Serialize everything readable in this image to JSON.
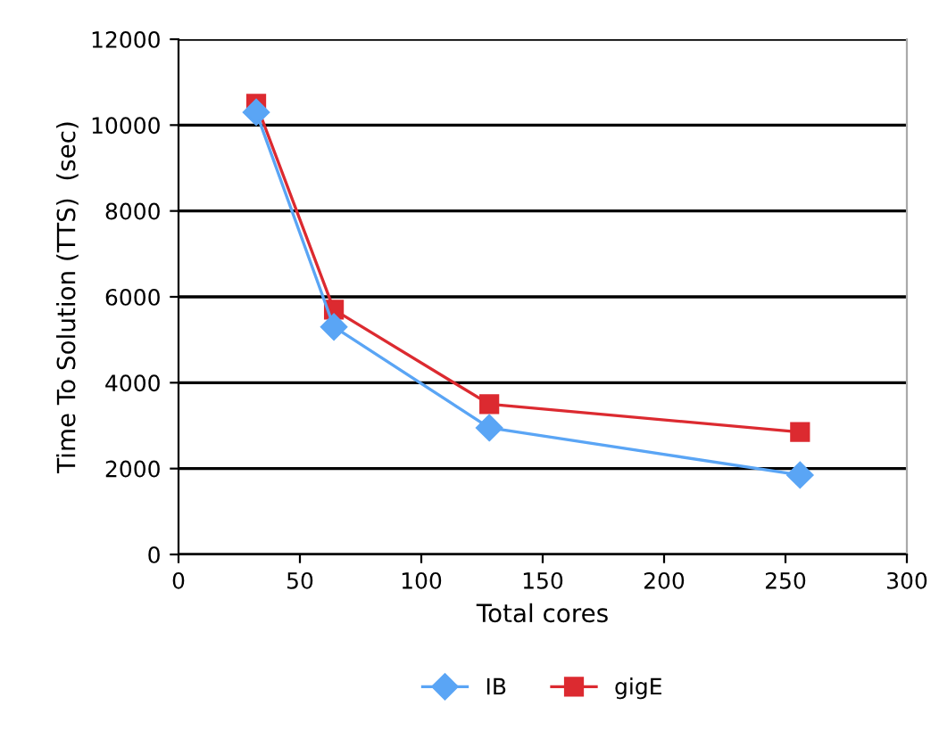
{
  "chart_data": {
    "type": "line",
    "xlabel": "Total cores",
    "ylabel": "Time To Solution (TTS)  (sec)",
    "x": [
      32,
      64,
      128,
      256
    ],
    "series": [
      {
        "name": "IB",
        "color": "#5aa5f5",
        "marker": "diamond",
        "values": [
          10300,
          5300,
          2950,
          1850
        ]
      },
      {
        "name": "gigE",
        "color": "#dc2a30",
        "marker": "square",
        "values": [
          10500,
          5700,
          3500,
          2850
        ]
      }
    ],
    "xlim": [
      0,
      300
    ],
    "xticks": [
      0,
      50,
      100,
      150,
      200,
      250,
      300
    ],
    "ylim": [
      0,
      12000
    ],
    "yticks": [
      0,
      2000,
      4000,
      6000,
      8000,
      10000,
      12000
    ],
    "grid": "y",
    "legend": "bottom",
    "line_style": "solid"
  }
}
